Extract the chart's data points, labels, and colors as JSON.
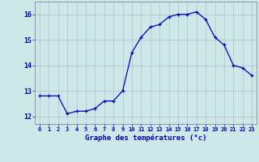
{
  "hours": [
    0,
    1,
    2,
    3,
    4,
    5,
    6,
    7,
    8,
    9,
    10,
    11,
    12,
    13,
    14,
    15,
    16,
    17,
    18,
    19,
    20,
    21,
    22,
    23
  ],
  "temps": [
    12.8,
    12.8,
    12.8,
    12.1,
    12.2,
    12.2,
    12.3,
    12.6,
    12.6,
    13.0,
    14.5,
    15.1,
    15.5,
    15.6,
    15.9,
    16.0,
    16.0,
    16.1,
    15.8,
    15.1,
    14.8,
    14.0,
    13.9,
    13.6
  ],
  "xlabel": "Graphe des températures (°c)",
  "xlim": [
    -0.5,
    23.5
  ],
  "ylim": [
    11.7,
    16.5
  ],
  "yticks": [
    12,
    13,
    14,
    15,
    16
  ],
  "xticks": [
    0,
    1,
    2,
    3,
    4,
    5,
    6,
    7,
    8,
    9,
    10,
    11,
    12,
    13,
    14,
    15,
    16,
    17,
    18,
    19,
    20,
    21,
    22,
    23
  ],
  "xtick_labels": [
    "0",
    "1",
    "2",
    "3",
    "4",
    "5",
    "6",
    "7",
    "8",
    "9",
    "10",
    "11",
    "12",
    "13",
    "14",
    "15",
    "16",
    "17",
    "18",
    "19",
    "20",
    "21",
    "22",
    "23"
  ],
  "line_color": "#0000bb",
  "marker": "+",
  "bg_color": "#cce8e8",
  "grid_color": "#bbbbcc",
  "axis_color": "#0000bb",
  "label_color": "#0000bb",
  "spine_color": "#888899"
}
